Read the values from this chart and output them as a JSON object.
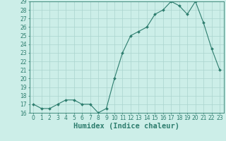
{
  "title": "",
  "xlabel": "Humidex (Indice chaleur)",
  "x": [
    0,
    1,
    2,
    3,
    4,
    5,
    6,
    7,
    8,
    9,
    10,
    11,
    12,
    13,
    14,
    15,
    16,
    17,
    18,
    19,
    20,
    21,
    22,
    23
  ],
  "y": [
    17,
    16.5,
    16.5,
    17,
    17.5,
    17.5,
    17,
    17,
    16,
    16.5,
    20,
    23,
    25,
    25.5,
    26,
    27.5,
    28,
    29,
    28.5,
    27.5,
    29,
    26.5,
    23.5,
    21
  ],
  "line_color": "#2d7d6e",
  "marker": "D",
  "marker_size": 2.0,
  "bg_color": "#cceee8",
  "grid_color": "#aad4ce",
  "ylim": [
    16,
    29
  ],
  "yticks": [
    16,
    17,
    18,
    19,
    20,
    21,
    22,
    23,
    24,
    25,
    26,
    27,
    28,
    29
  ],
  "xticks": [
    0,
    1,
    2,
    3,
    4,
    5,
    6,
    7,
    8,
    9,
    10,
    11,
    12,
    13,
    14,
    15,
    16,
    17,
    18,
    19,
    20,
    21,
    22,
    23
  ],
  "axis_color": "#2d7d6e",
  "tick_fontsize": 5.5,
  "xlabel_fontsize": 7.5,
  "linewidth": 0.8
}
